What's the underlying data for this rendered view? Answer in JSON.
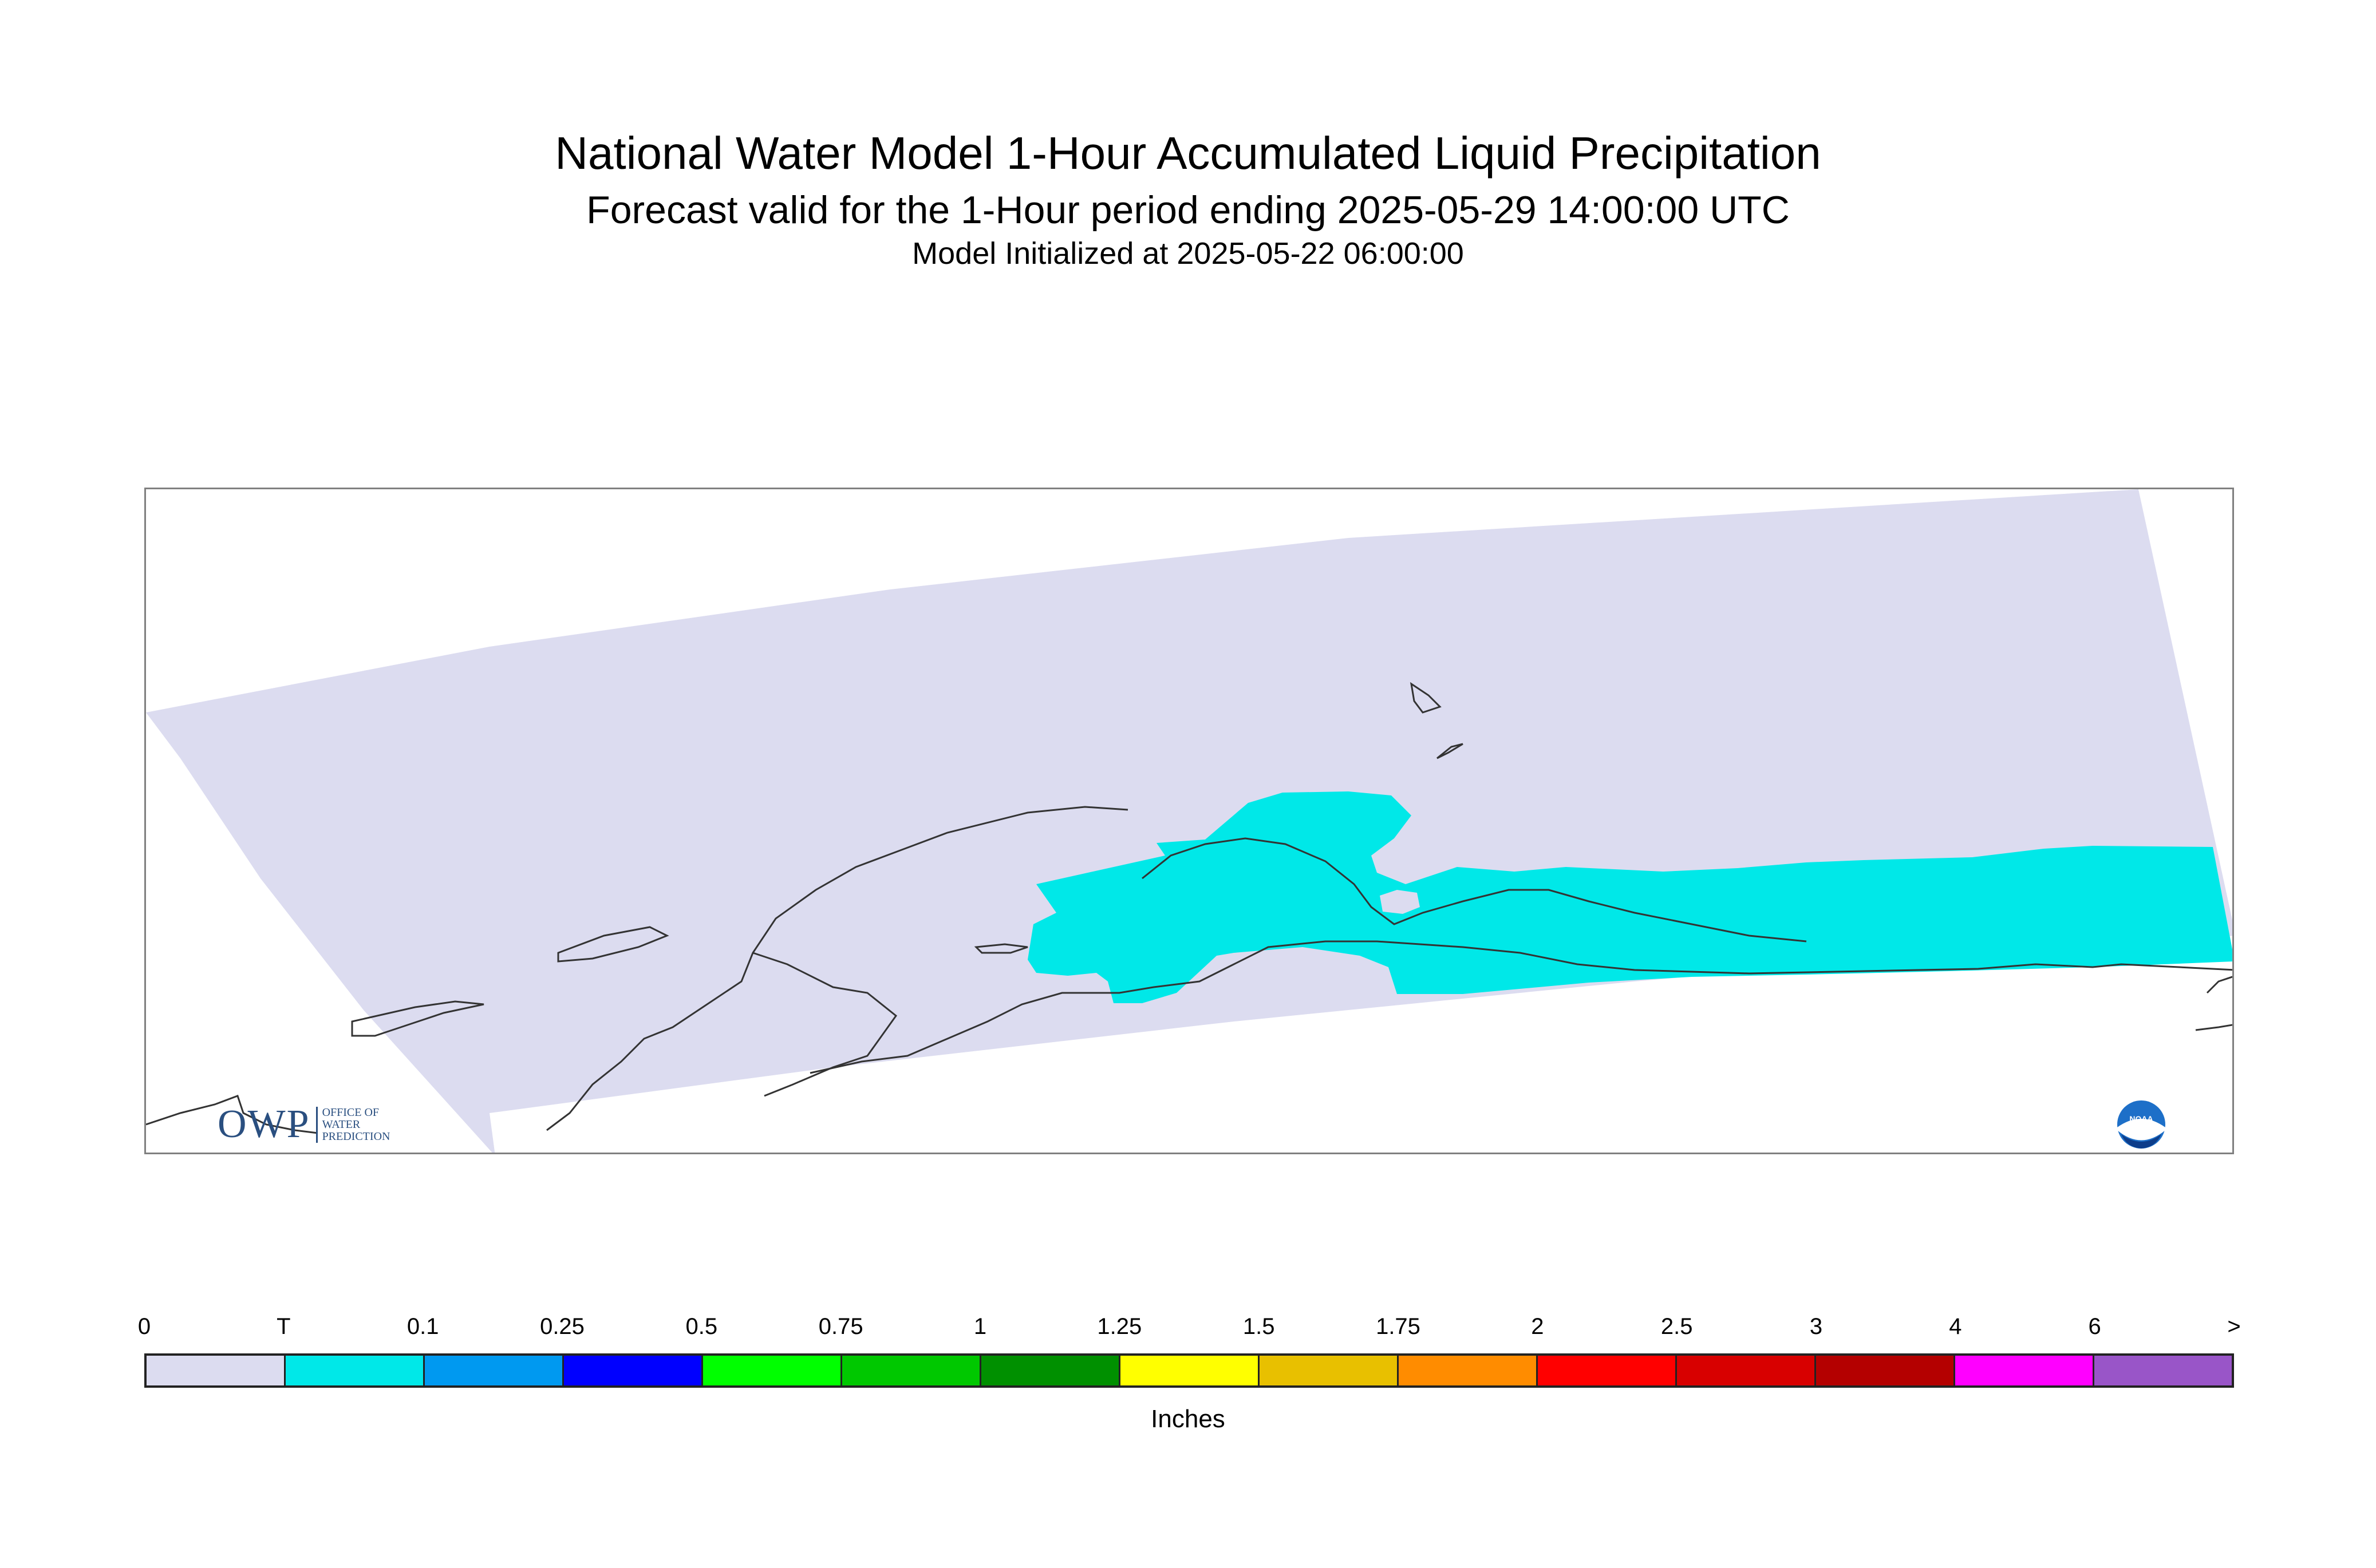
{
  "header": {
    "title": "National Water Model 1-Hour Accumulated Liquid Precipitation",
    "subtitle": "Forecast valid for the 1-Hour period ending 2025-05-29 14:00:00 UTC",
    "init": "Model Initialized at 2025-05-22 06:00:00"
  },
  "map": {
    "region": "Alaska",
    "domain_color": "#dcdcf0",
    "precip_color": "#00e8e8",
    "coastline_color": "#333333"
  },
  "logos": {
    "owp": {
      "letters": "OWP",
      "line1": "OFFICE OF",
      "line2": "WATER",
      "line3": "PREDICTION"
    },
    "noaa": {
      "text": "NOAA"
    }
  },
  "legend": {
    "units": "Inches",
    "labels": [
      "0",
      "T",
      "0.1",
      "0.25",
      "0.5",
      "0.75",
      "1",
      "1.25",
      "1.5",
      "1.75",
      "2",
      "2.5",
      "3",
      "4",
      "6",
      ">"
    ],
    "colors": [
      "#dcdcf0",
      "#00e8e8",
      "#0099f0",
      "#0000ff",
      "#00ff00",
      "#00c800",
      "#009000",
      "#ffff00",
      "#e8c000",
      "#ff8c00",
      "#ff0000",
      "#d80000",
      "#b40000",
      "#ff00ff",
      "#9955c8"
    ]
  }
}
